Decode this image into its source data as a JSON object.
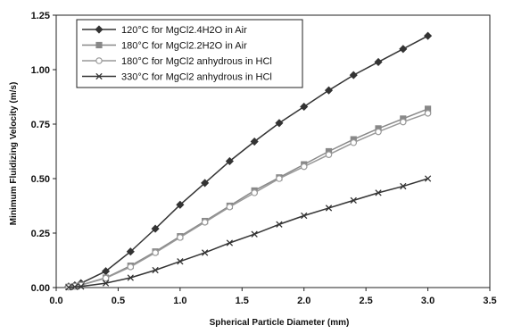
{
  "chart_data": {
    "type": "line",
    "title": "",
    "xlabel": "Spherical Particle Diameter (mm)",
    "ylabel": "Minimum Fluidizing Velocity (m/s)",
    "xlim": [
      0,
      3.5
    ],
    "ylim": [
      0,
      1.25
    ],
    "xticks": [
      "0.0",
      "0.5",
      "1.0",
      "1.5",
      "2.0",
      "2.5",
      "3.0",
      "3.5"
    ],
    "yticks": [
      "0.00",
      "0.25",
      "0.50",
      "0.75",
      "1.00",
      "1.25"
    ],
    "grid": false,
    "legend_position": "top-left",
    "x": [
      0.1,
      0.15,
      0.2,
      0.4,
      0.6,
      0.8,
      1.0,
      1.2,
      1.4,
      1.6,
      1.8,
      2.0,
      2.2,
      2.4,
      2.6,
      2.8,
      3.0
    ],
    "series": [
      {
        "name": "120°C for MgCl2.4H2O in Air",
        "marker": "diamond",
        "color": "#333333",
        "values": [
          0.005,
          0.01,
          0.02,
          0.075,
          0.165,
          0.27,
          0.38,
          0.48,
          0.58,
          0.67,
          0.755,
          0.83,
          0.905,
          0.975,
          1.035,
          1.095,
          1.155
        ]
      },
      {
        "name": "180°C for MgCl2.2H2O in Air",
        "marker": "square",
        "color": "#888888",
        "values": [
          0.003,
          0.006,
          0.012,
          0.045,
          0.1,
          0.165,
          0.235,
          0.305,
          0.375,
          0.445,
          0.505,
          0.565,
          0.625,
          0.68,
          0.73,
          0.775,
          0.82
        ]
      },
      {
        "name": "180°C for MgCl2 anhydrous in HCl",
        "marker": "circle",
        "color": "#999999",
        "values": [
          0.003,
          0.006,
          0.011,
          0.043,
          0.095,
          0.16,
          0.23,
          0.3,
          0.37,
          0.435,
          0.5,
          0.555,
          0.61,
          0.665,
          0.715,
          0.76,
          0.8
        ]
      },
      {
        "name": "330°C for MgCl2 anhydrous in HCl",
        "marker": "x",
        "color": "#333333",
        "values": [
          0.001,
          0.003,
          0.005,
          0.02,
          0.045,
          0.08,
          0.12,
          0.16,
          0.205,
          0.245,
          0.29,
          0.33,
          0.365,
          0.4,
          0.435,
          0.465,
          0.5
        ]
      }
    ]
  }
}
